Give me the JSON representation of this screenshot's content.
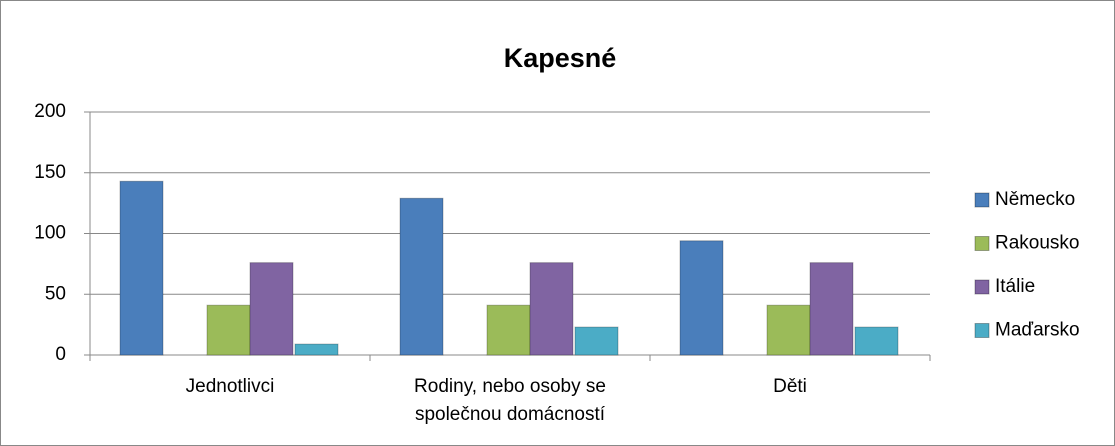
{
  "chart_data": {
    "type": "bar",
    "title": "Kapesné",
    "categories": [
      "Jednotlivci",
      "Rodiny, nebo osoby se společnou domácností",
      "Děti"
    ],
    "series": [
      {
        "name": "Německo",
        "color": "#4a7ebb",
        "values": [
          143,
          129,
          94
        ]
      },
      {
        "name": "Rakousko",
        "color": "#9bbb59",
        "values": [
          41,
          41,
          41
        ]
      },
      {
        "name": "Itálie",
        "color": "#8064a2",
        "values": [
          76,
          76,
          76
        ]
      },
      {
        "name": "Maďarsko",
        "color": "#4bacc6",
        "values": [
          9,
          23,
          23
        ]
      }
    ],
    "ylim": [
      0,
      200
    ],
    "yticks": [
      0,
      50,
      100,
      150,
      200
    ],
    "grid": true,
    "legend": "right"
  }
}
